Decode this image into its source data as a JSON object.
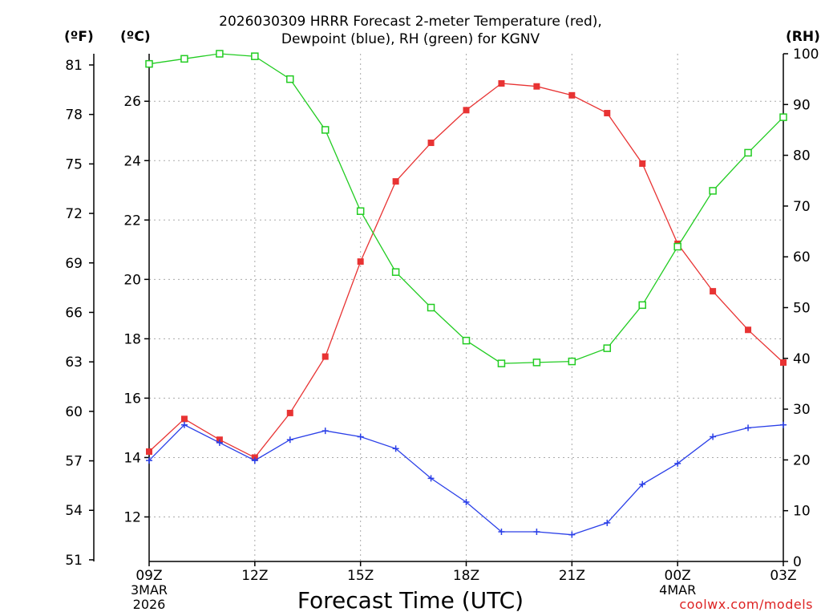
{
  "chart_data": {
    "type": "line",
    "title_line1": "2026030309 HRRR Forecast 2-meter Temperature (red),",
    "title_line2": "Dewpoint (blue), RH (green) for KGNV",
    "xlabel": "Forecast Time (UTC)",
    "units": {
      "fahrenheit": "(ºF)",
      "celsius": "(ºC)",
      "rh": "(RH)"
    },
    "x_ticks": [
      {
        "hour": 0,
        "label": "09Z",
        "sub1": "3MAR",
        "sub2": "2026"
      },
      {
        "hour": 3,
        "label": "12Z",
        "sub1": "",
        "sub2": ""
      },
      {
        "hour": 6,
        "label": "15Z",
        "sub1": "",
        "sub2": ""
      },
      {
        "hour": 9,
        "label": "18Z",
        "sub1": "",
        "sub2": ""
      },
      {
        "hour": 12,
        "label": "21Z",
        "sub1": "",
        "sub2": ""
      },
      {
        "hour": 15,
        "label": "00Z",
        "sub1": "4MAR",
        "sub2": ""
      },
      {
        "hour": 18,
        "label": "03Z",
        "sub1": "",
        "sub2": ""
      }
    ],
    "x_range": [
      0,
      18
    ],
    "celsius_range": [
      10.5,
      27.6
    ],
    "celsius_ticks": [
      12,
      14,
      16,
      18,
      20,
      22,
      24,
      26
    ],
    "fahrenheit_ticks": [
      51,
      54,
      57,
      60,
      63,
      66,
      69,
      72,
      75,
      78,
      81
    ],
    "rh_range": [
      0,
      100
    ],
    "rh_ticks": [
      0,
      10,
      20,
      30,
      40,
      50,
      60,
      70,
      80,
      90,
      100
    ],
    "series": [
      {
        "name": "2-meter Temperature",
        "axis": "celsius",
        "color": "#e83333",
        "marker": "filled-square",
        "values": [
          14.2,
          15.3,
          14.6,
          14.0,
          15.5,
          17.4,
          20.6,
          23.3,
          24.6,
          25.7,
          26.6,
          26.5,
          26.2,
          25.6,
          23.9,
          21.2,
          19.6,
          18.3,
          17.2
        ]
      },
      {
        "name": "Dewpoint",
        "axis": "celsius",
        "color": "#2a3fe8",
        "marker": "plus",
        "values": [
          13.9,
          15.1,
          14.5,
          13.9,
          14.6,
          14.9,
          14.7,
          14.3,
          13.3,
          12.5,
          11.5,
          11.5,
          11.4,
          11.8,
          13.1,
          13.8,
          14.7,
          15.0,
          15.1
        ]
      },
      {
        "name": "RH",
        "axis": "rh",
        "color": "#22cc22",
        "marker": "open-square",
        "values": [
          98,
          99,
          100,
          99.5,
          95,
          85,
          69,
          57,
          50,
          43.5,
          39,
          39.2,
          39.4,
          42,
          50.5,
          62,
          73,
          80.5,
          87.5
        ]
      }
    ]
  },
  "watermark": "coolwx.com/models"
}
